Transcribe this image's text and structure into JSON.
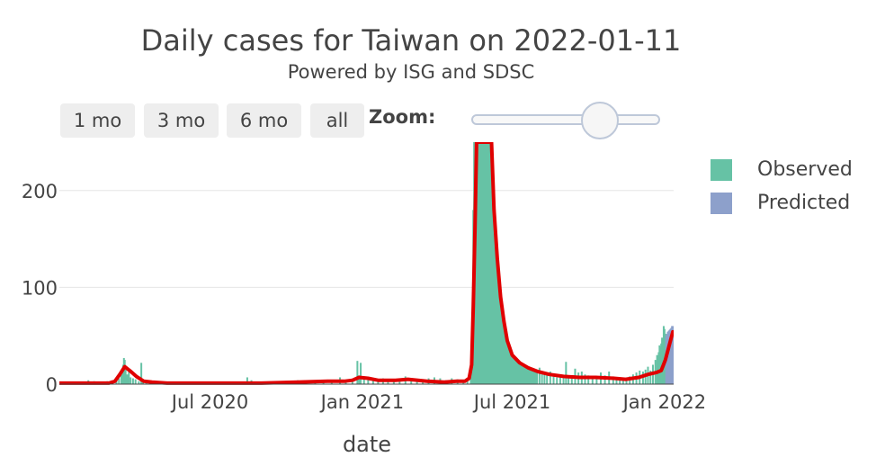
{
  "chart_data": {
    "type": "bar",
    "title": "Daily cases for Taiwan on 2022-01-11",
    "subtitle": "Powered by ISG and SDSC",
    "xlabel": "date",
    "ylabel": "",
    "xlim": [
      "2020-01-01",
      "2022-01-12"
    ],
    "ylim": [
      0,
      250
    ],
    "y_ticks": [
      0,
      100,
      200
    ],
    "x_ticks": [
      {
        "date": "2020-07-01",
        "label": "Jul 2020"
      },
      {
        "date": "2021-01-01",
        "label": "Jan 2021"
      },
      {
        "date": "2021-07-01",
        "label": "Jul 2021"
      },
      {
        "date": "2022-01-01",
        "label": "Jan 2022"
      }
    ],
    "grid": true,
    "legend_position": "right",
    "series": [
      {
        "name": "Observed",
        "color": "#66c2a5",
        "type": "bar",
        "points": [
          [
            "2020-01-20",
            1
          ],
          [
            "2020-01-28",
            2
          ],
          [
            "2020-02-05",
            4
          ],
          [
            "2020-02-12",
            3
          ],
          [
            "2020-02-20",
            2
          ],
          [
            "2020-02-28",
            3
          ],
          [
            "2020-03-05",
            1
          ],
          [
            "2020-03-10",
            5
          ],
          [
            "2020-03-13",
            6
          ],
          [
            "2020-03-16",
            10
          ],
          [
            "2020-03-18",
            20
          ],
          [
            "2020-03-19",
            27
          ],
          [
            "2020-03-20",
            25
          ],
          [
            "2020-03-21",
            18
          ],
          [
            "2020-03-23",
            10
          ],
          [
            "2020-03-25",
            13
          ],
          [
            "2020-03-27",
            7
          ],
          [
            "2020-03-30",
            6
          ],
          [
            "2020-04-02",
            5
          ],
          [
            "2020-04-06",
            3
          ],
          [
            "2020-04-09",
            22
          ],
          [
            "2020-04-11",
            4
          ],
          [
            "2020-04-15",
            2
          ],
          [
            "2020-04-20",
            3
          ],
          [
            "2020-04-26",
            1
          ],
          [
            "2020-05-05",
            1
          ],
          [
            "2020-05-20",
            1
          ],
          [
            "2020-06-05",
            1
          ],
          [
            "2020-06-20",
            1
          ],
          [
            "2020-07-10",
            1
          ],
          [
            "2020-07-25",
            2
          ],
          [
            "2020-08-05",
            2
          ],
          [
            "2020-08-15",
            7
          ],
          [
            "2020-08-20",
            4
          ],
          [
            "2020-09-05",
            2
          ],
          [
            "2020-09-20",
            2
          ],
          [
            "2020-10-05",
            3
          ],
          [
            "2020-10-15",
            4
          ],
          [
            "2020-10-25",
            4
          ],
          [
            "2020-11-05",
            3
          ],
          [
            "2020-11-15",
            2
          ],
          [
            "2020-11-25",
            4
          ],
          [
            "2020-12-05",
            7
          ],
          [
            "2020-12-12",
            3
          ],
          [
            "2020-12-20",
            5
          ],
          [
            "2020-12-26",
            24
          ],
          [
            "2020-12-28",
            9
          ],
          [
            "2020-12-30",
            22
          ],
          [
            "2021-01-03",
            6
          ],
          [
            "2021-01-08",
            7
          ],
          [
            "2021-01-14",
            5
          ],
          [
            "2021-01-20",
            4
          ],
          [
            "2021-01-26",
            6
          ],
          [
            "2021-02-01",
            5
          ],
          [
            "2021-02-08",
            4
          ],
          [
            "2021-02-15",
            6
          ],
          [
            "2021-02-22",
            8
          ],
          [
            "2021-03-01",
            3
          ],
          [
            "2021-03-08",
            5
          ],
          [
            "2021-03-15",
            4
          ],
          [
            "2021-03-22",
            6
          ],
          [
            "2021-03-29",
            7
          ],
          [
            "2021-04-05",
            6
          ],
          [
            "2021-04-12",
            4
          ],
          [
            "2021-04-19",
            6
          ],
          [
            "2021-04-26",
            5
          ],
          [
            "2021-05-03",
            4
          ],
          [
            "2021-05-08",
            6
          ],
          [
            "2021-05-12",
            12
          ],
          [
            "2021-05-14",
            29
          ],
          [
            "2021-05-15",
            180
          ],
          [
            "2021-05-16",
            250
          ],
          [
            "2021-05-17",
            250
          ],
          [
            "2021-05-18",
            250
          ],
          [
            "2021-05-20",
            250
          ],
          [
            "2021-05-22",
            250
          ],
          [
            "2021-05-24",
            250
          ],
          [
            "2021-05-26",
            250
          ],
          [
            "2021-05-28",
            250
          ],
          [
            "2021-05-30",
            250
          ],
          [
            "2021-06-01",
            250
          ],
          [
            "2021-06-03",
            250
          ],
          [
            "2021-06-05",
            250
          ],
          [
            "2021-06-07",
            250
          ],
          [
            "2021-06-09",
            186
          ],
          [
            "2021-06-11",
            150
          ],
          [
            "2021-06-13",
            130
          ],
          [
            "2021-06-15",
            105
          ],
          [
            "2021-06-17",
            85
          ],
          [
            "2021-06-19",
            80
          ],
          [
            "2021-06-21",
            60
          ],
          [
            "2021-06-23",
            50
          ],
          [
            "2021-06-25",
            45
          ],
          [
            "2021-06-27",
            40
          ],
          [
            "2021-06-29",
            38
          ],
          [
            "2021-07-01",
            30
          ],
          [
            "2021-07-04",
            28
          ],
          [
            "2021-07-07",
            25
          ],
          [
            "2021-07-10",
            22
          ],
          [
            "2021-07-13",
            20
          ],
          [
            "2021-07-16",
            18
          ],
          [
            "2021-07-19",
            17
          ],
          [
            "2021-07-22",
            16
          ],
          [
            "2021-07-25",
            14
          ],
          [
            "2021-07-28",
            13
          ],
          [
            "2021-07-31",
            12
          ],
          [
            "2021-08-03",
            17
          ],
          [
            "2021-08-06",
            11
          ],
          [
            "2021-08-09",
            10
          ],
          [
            "2021-08-12",
            9
          ],
          [
            "2021-08-16",
            13
          ],
          [
            "2021-08-20",
            8
          ],
          [
            "2021-08-24",
            7
          ],
          [
            "2021-08-28",
            8
          ],
          [
            "2021-09-01",
            7
          ],
          [
            "2021-09-04",
            23
          ],
          [
            "2021-09-07",
            9
          ],
          [
            "2021-09-11",
            8
          ],
          [
            "2021-09-15",
            16
          ],
          [
            "2021-09-19",
            12
          ],
          [
            "2021-09-23",
            13
          ],
          [
            "2021-09-27",
            10
          ],
          [
            "2021-10-01",
            9
          ],
          [
            "2021-10-06",
            8
          ],
          [
            "2021-10-11",
            7
          ],
          [
            "2021-10-16",
            12
          ],
          [
            "2021-10-21",
            9
          ],
          [
            "2021-10-26",
            13
          ],
          [
            "2021-10-31",
            8
          ],
          [
            "2021-11-04",
            7
          ],
          [
            "2021-11-08",
            6
          ],
          [
            "2021-11-12",
            5
          ],
          [
            "2021-11-16",
            6
          ],
          [
            "2021-11-20",
            8
          ],
          [
            "2021-11-24",
            10
          ],
          [
            "2021-11-28",
            12
          ],
          [
            "2021-12-02",
            14
          ],
          [
            "2021-12-06",
            13
          ],
          [
            "2021-12-09",
            15
          ],
          [
            "2021-12-12",
            18
          ],
          [
            "2021-12-15",
            14
          ],
          [
            "2021-12-18",
            20
          ],
          [
            "2021-12-21",
            25
          ],
          [
            "2021-12-23",
            30
          ],
          [
            "2021-12-25",
            33
          ],
          [
            "2021-12-26",
            40
          ],
          [
            "2021-12-27",
            38
          ],
          [
            "2021-12-28",
            42
          ],
          [
            "2021-12-29",
            48
          ],
          [
            "2021-12-30",
            45
          ],
          [
            "2021-12-31",
            60
          ],
          [
            "2022-01-01",
            57
          ],
          [
            "2022-01-02",
            52
          ]
        ]
      },
      {
        "name": "Predicted",
        "color": "#8da0cb",
        "type": "bar",
        "points": [
          [
            "2022-01-03",
            50
          ],
          [
            "2022-01-04",
            52
          ],
          [
            "2022-01-05",
            54
          ],
          [
            "2022-01-06",
            55
          ],
          [
            "2022-01-07",
            56
          ],
          [
            "2022-01-08",
            57
          ],
          [
            "2022-01-09",
            58
          ],
          [
            "2022-01-10",
            60
          ],
          [
            "2022-01-11",
            60
          ]
        ]
      },
      {
        "name": "",
        "color": "#e00000",
        "type": "line",
        "points": [
          [
            "2020-01-01",
            1
          ],
          [
            "2020-02-01",
            1
          ],
          [
            "2020-03-01",
            1
          ],
          [
            "2020-03-08",
            3
          ],
          [
            "2020-03-14",
            10
          ],
          [
            "2020-03-20",
            18
          ],
          [
            "2020-03-26",
            14
          ],
          [
            "2020-04-03",
            8
          ],
          [
            "2020-04-12",
            3
          ],
          [
            "2020-04-22",
            2
          ],
          [
            "2020-05-10",
            1
          ],
          [
            "2020-07-01",
            1
          ],
          [
            "2020-09-01",
            1
          ],
          [
            "2020-10-15",
            2
          ],
          [
            "2020-11-20",
            3
          ],
          [
            "2020-12-10",
            3
          ],
          [
            "2020-12-20",
            4
          ],
          [
            "2020-12-28",
            7
          ],
          [
            "2021-01-08",
            6
          ],
          [
            "2021-01-20",
            4
          ],
          [
            "2021-02-10",
            4
          ],
          [
            "2021-02-25",
            5
          ],
          [
            "2021-03-20",
            3
          ],
          [
            "2021-04-10",
            2
          ],
          [
            "2021-04-25",
            3
          ],
          [
            "2021-05-05",
            3
          ],
          [
            "2021-05-10",
            6
          ],
          [
            "2021-05-13",
            20
          ],
          [
            "2021-05-15",
            80
          ],
          [
            "2021-05-17",
            160
          ],
          [
            "2021-05-19",
            250
          ],
          [
            "2021-06-06",
            250
          ],
          [
            "2021-06-09",
            180
          ],
          [
            "2021-06-13",
            130
          ],
          [
            "2021-06-17",
            90
          ],
          [
            "2021-06-21",
            65
          ],
          [
            "2021-06-25",
            45
          ],
          [
            "2021-07-01",
            30
          ],
          [
            "2021-07-10",
            22
          ],
          [
            "2021-07-20",
            17
          ],
          [
            "2021-08-01",
            13
          ],
          [
            "2021-08-15",
            10
          ],
          [
            "2021-09-01",
            8
          ],
          [
            "2021-09-20",
            7
          ],
          [
            "2021-10-10",
            7
          ],
          [
            "2021-11-01",
            6
          ],
          [
            "2021-11-15",
            5
          ],
          [
            "2021-12-01",
            7
          ],
          [
            "2021-12-12",
            10
          ],
          [
            "2021-12-22",
            12
          ],
          [
            "2021-12-28",
            14
          ],
          [
            "2022-01-02",
            25
          ],
          [
            "2022-01-06",
            38
          ],
          [
            "2022-01-11",
            54
          ]
        ]
      }
    ]
  },
  "controls": {
    "range_buttons": [
      "1 mo",
      "3 mo",
      "6 mo",
      "all"
    ],
    "zoom_label": "Zoom:",
    "zoom_level": 0.57
  }
}
